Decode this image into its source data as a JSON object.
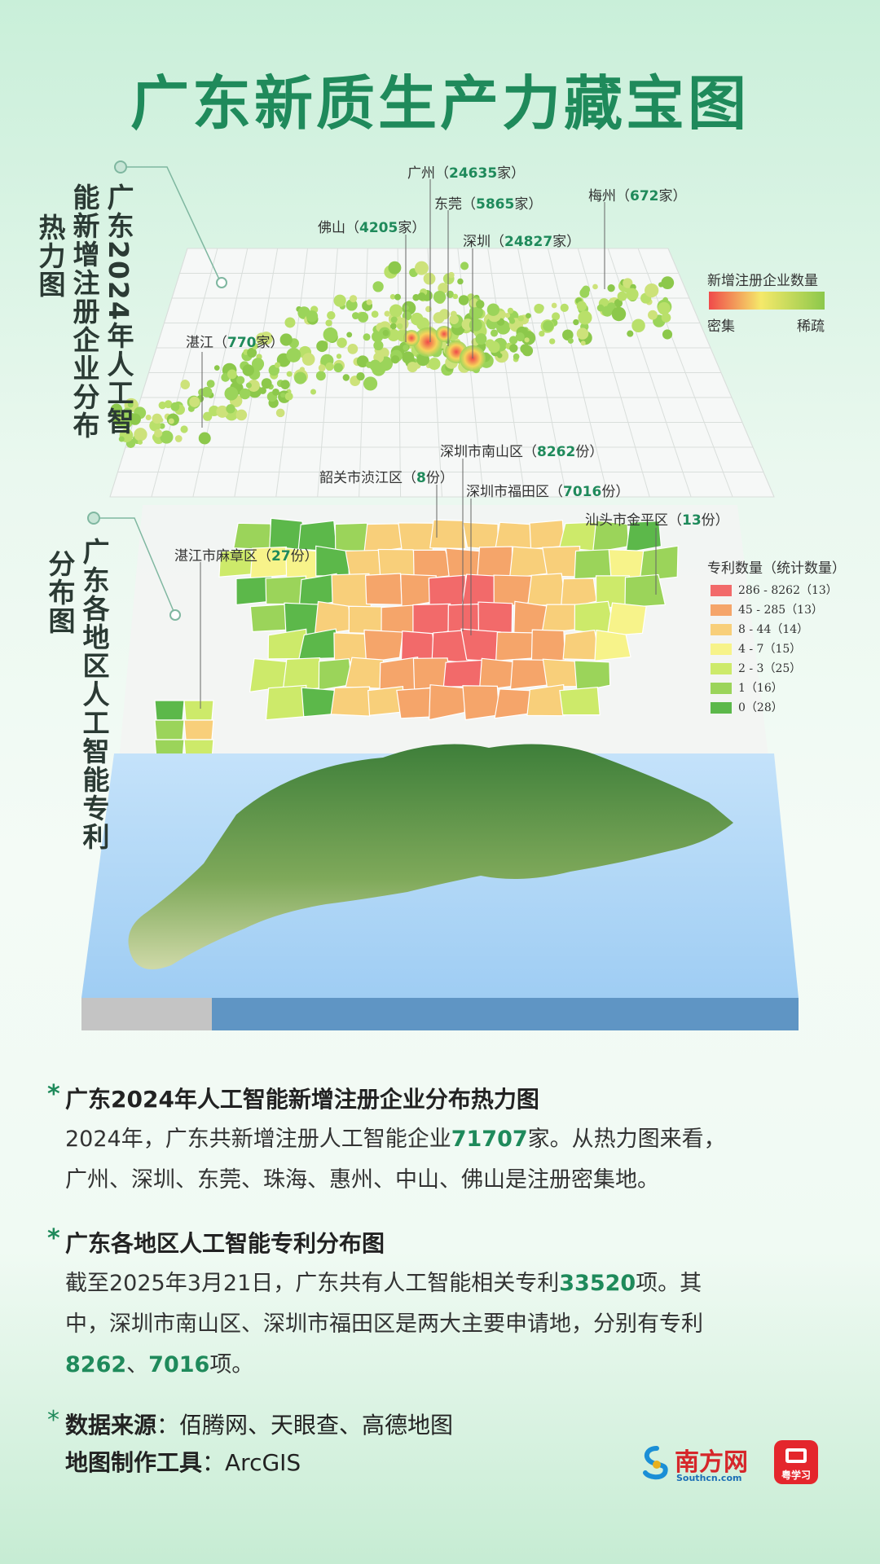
{
  "title": "广东新质生产力藏宝图",
  "layer1": {
    "side_label": "广东2024年人工智能新增注册企业分布热力图",
    "side_col1": "广东2024年人工智",
    "side_col2": "能新增注册企业分布",
    "side_col3": "热力图",
    "cities": [
      {
        "prefix": "广州（",
        "num": "24635",
        "suffix": "家）"
      },
      {
        "prefix": "东莞（",
        "num": "5865",
        "suffix": "家）"
      },
      {
        "prefix": "佛山（",
        "num": "4205",
        "suffix": "家）"
      },
      {
        "prefix": "深圳（",
        "num": "24827",
        "suffix": "家）"
      },
      {
        "prefix": "梅州（",
        "num": "672",
        "suffix": "家）"
      },
      {
        "prefix": "湛江（",
        "num": "770",
        "suffix": "家）"
      }
    ],
    "legend": {
      "title": "新增注册企业数量",
      "low": "密集",
      "high": "稀疏"
    }
  },
  "layer2": {
    "side_col1": "广东各地区人工智能专利",
    "side_col2": "分布图",
    "districts": [
      {
        "prefix": "深圳市南山区（",
        "num": "8262",
        "suffix": "份）"
      },
      {
        "prefix": "韶关市浈江区（",
        "num": "8",
        "suffix": "份）"
      },
      {
        "prefix": "深圳市福田区（",
        "num": "7016",
        "suffix": "份）"
      },
      {
        "prefix": "汕头市金平区（",
        "num": "13",
        "suffix": "份）"
      },
      {
        "prefix": "湛江市麻章区（",
        "num": "27",
        "suffix": "份）"
      }
    ],
    "legend": {
      "title": "专利数量（统计数量）",
      "items": [
        {
          "label": "286 - 8262（13）",
          "color": "#f26a6a"
        },
        {
          "label": "45 - 285（13）",
          "color": "#f5a56a"
        },
        {
          "label": "8 - 44（14）",
          "color": "#f8cf7a"
        },
        {
          "label": "4 - 7（15）",
          "color": "#f7f38a"
        },
        {
          "label": "2 - 3（25）",
          "color": "#cdea6a"
        },
        {
          "label": "1（16）",
          "color": "#9bd45a"
        },
        {
          "label": "0（28）",
          "color": "#5cb84a"
        }
      ]
    }
  },
  "text": {
    "s1_title": "广东2024年人工智能新增注册企业分布热力图",
    "s1_a": "2024年，广东共新增注册人工智能企业",
    "s1_num": "71707",
    "s1_b": "家。从热力图来看，",
    "s1_c": "广州、深圳、东莞、珠海、惠州、中山、佛山是注册密集地。",
    "s2_title": "广东各地区人工智能专利分布图",
    "s2_a": "截至2025年3月21日，广东共有人工智能相关专利",
    "s2_num": "33520",
    "s2_b": "项。其",
    "s2_c": "中，深圳市南山区、深圳市福田区是两大主要申请地，分别有专利",
    "s2_n1": "8262",
    "s2_sep": "、",
    "s2_n2": "7016",
    "s2_d": "项。",
    "src_label": "数据来源",
    "src_value": "：佰腾网、天眼查、高德地图",
    "tool_label": "地图制作工具",
    "tool_value": "：ArcGIS",
    "star": "*"
  },
  "logos": {
    "southcn": "南方网",
    "southcn_sub": "Southcn.com",
    "yxx": "粤学习"
  },
  "colors": {
    "accent": "#1f8a5b"
  }
}
